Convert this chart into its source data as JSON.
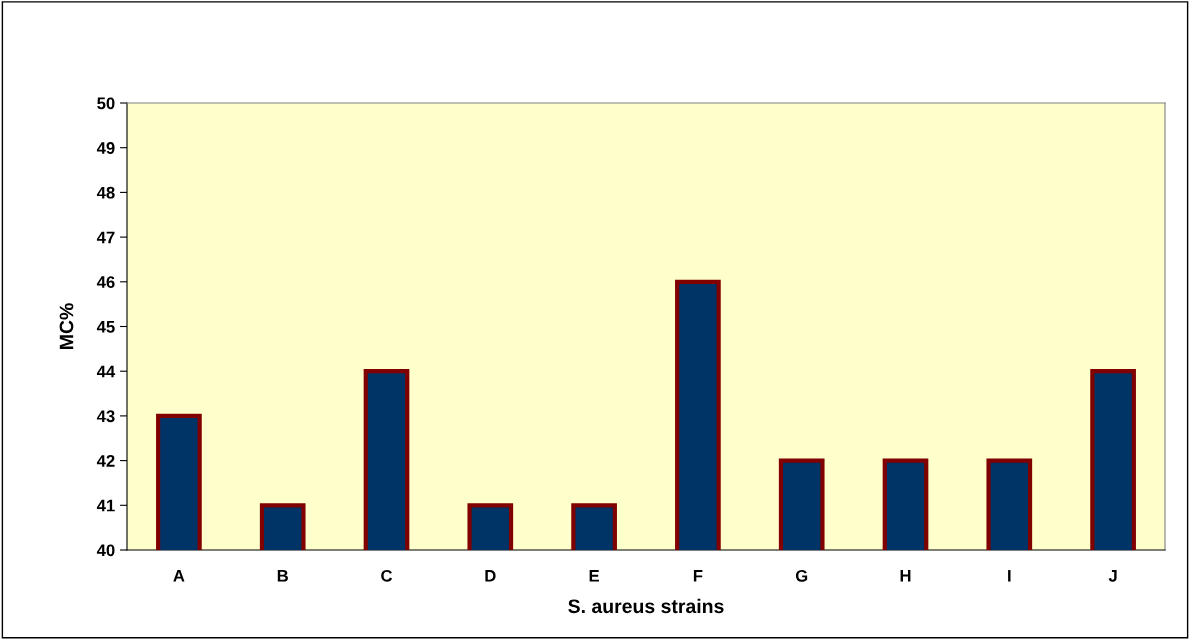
{
  "chart_data": {
    "type": "bar",
    "xlabel": "S. aureus strains",
    "ylabel": "MC%",
    "categories": [
      "A",
      "B",
      "C",
      "D",
      "E",
      "F",
      "G",
      "H",
      "I",
      "J"
    ],
    "values": [
      43,
      41,
      44,
      41,
      41,
      46,
      42,
      42,
      42,
      44
    ],
    "color": "#003366",
    "ylim": [
      40,
      50
    ],
    "yticks": [
      40,
      41,
      42,
      43,
      44,
      45,
      46,
      47,
      48,
      49,
      50
    ],
    "grid": false
  }
}
